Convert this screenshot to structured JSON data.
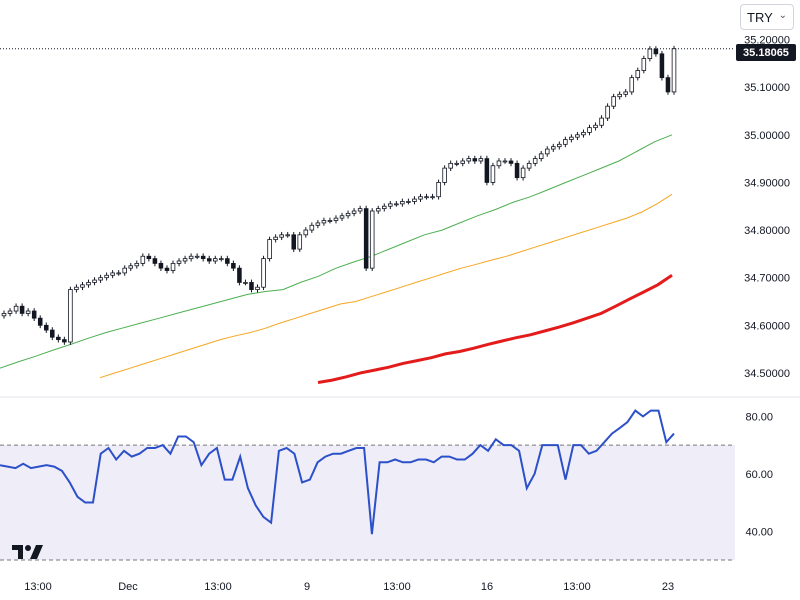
{
  "currency_select": {
    "value": "TRY"
  },
  "last_price": "35.18065",
  "colors": {
    "candle_up_body": "#ffffff",
    "candle_outline": "#131722",
    "candle_down_body": "#131722",
    "ma_fast": "#4caf50",
    "ma_mid": "#f5a623",
    "ma_slow": "#e31b1b",
    "rsi_line": "#2c50c8",
    "rsi_band": "#efedf8",
    "grid": "#e6e6e6"
  },
  "icons": {
    "logo": "tradingview-logo-icon",
    "dropdown": "chevron-down-icon"
  },
  "chart_data": [
    {
      "type": "candlestick",
      "panel": "price",
      "ylim": [
        34.46,
        35.22
      ],
      "y_ticks": [
        "35.20000",
        "35.10000",
        "35.00000",
        "34.90000",
        "34.80000",
        "34.70000",
        "34.60000",
        "34.50000"
      ],
      "x_tick_labels": [
        "13:00",
        "Dec",
        "13:00",
        "9",
        "13:00",
        "16",
        "13:00",
        "23"
      ],
      "close_series": [
        34.625,
        34.63,
        34.64,
        34.625,
        34.63,
        34.615,
        34.6,
        34.59,
        34.575,
        34.57,
        34.565,
        34.675,
        34.68,
        34.685,
        34.69,
        34.695,
        34.7,
        34.705,
        34.71,
        34.71,
        34.72,
        34.725,
        34.73,
        34.745,
        34.74,
        34.73,
        34.72,
        34.715,
        34.73,
        34.735,
        34.74,
        34.745,
        34.745,
        34.74,
        34.735,
        34.74,
        34.74,
        34.73,
        34.72,
        34.69,
        34.69,
        34.675,
        34.68,
        34.74,
        34.78,
        34.785,
        34.79,
        34.79,
        34.76,
        34.79,
        34.8,
        34.81,
        34.815,
        34.82,
        34.82,
        34.825,
        34.83,
        34.835,
        34.84,
        34.845,
        34.72,
        34.84,
        34.845,
        34.85,
        34.855,
        34.855,
        34.86,
        34.86,
        34.865,
        34.87,
        34.87,
        34.87,
        34.9,
        34.93,
        34.94,
        34.94,
        34.945,
        34.95,
        34.945,
        34.95,
        34.9,
        34.935,
        34.945,
        34.945,
        34.94,
        34.91,
        34.93,
        34.94,
        34.95,
        34.96,
        34.97,
        34.975,
        34.98,
        34.99,
        34.995,
        35.0,
        35.005,
        35.015,
        35.02,
        35.035,
        35.06,
        35.08,
        35.085,
        35.09,
        35.12,
        35.135,
        35.16,
        35.18,
        35.17,
        35.12,
        35.09,
        35.18065
      ]
    },
    {
      "type": "line",
      "panel": "price",
      "series": [
        {
          "values": [
            34.51,
            34.523,
            34.535,
            34.548,
            34.56,
            34.573,
            34.585,
            34.595,
            34.605,
            34.615,
            34.625,
            34.635,
            34.645,
            34.655,
            34.665,
            34.671,
            34.675,
            34.69,
            34.703,
            34.72,
            34.733,
            34.745,
            34.76,
            34.775,
            34.79,
            34.8,
            34.815,
            34.83,
            34.843,
            34.858,
            34.87,
            34.885,
            34.9,
            34.915,
            34.93,
            34.945,
            34.965,
            34.985,
            35.0
          ]
        },
        {
          "values": [
            34.49,
            34.5,
            34.51,
            34.52,
            34.53,
            34.54,
            34.55,
            34.56,
            34.57,
            34.578,
            34.585,
            34.594,
            34.605,
            34.615,
            34.625,
            34.635,
            34.645,
            34.65,
            34.66,
            34.67,
            34.68,
            34.69,
            34.7,
            34.71,
            34.72,
            34.728,
            34.737,
            34.745,
            34.755,
            34.765,
            34.775,
            34.785,
            34.795,
            34.805,
            34.815,
            34.825,
            34.838,
            34.855,
            34.875
          ]
        },
        {
          "values": [
            34.48,
            34.485,
            34.492,
            34.5,
            34.506,
            34.512,
            34.52,
            34.526,
            34.532,
            34.54,
            34.545,
            34.552,
            34.56,
            34.567,
            34.574,
            34.58,
            34.588,
            34.596,
            34.605,
            34.615,
            34.625,
            34.64,
            34.655,
            34.67,
            34.685,
            34.705
          ]
        }
      ]
    },
    {
      "type": "line",
      "panel": "rsi",
      "ylim": [
        30,
        85
      ],
      "y_ticks": [
        "80.00",
        "60.00",
        "40.00"
      ],
      "band": [
        30,
        70
      ],
      "series": [
        {
          "values": [
            63,
            62.5,
            62,
            63.5,
            62,
            62.5,
            63,
            62.5,
            61,
            57,
            52,
            50,
            50,
            67,
            69,
            65,
            68,
            66,
            67,
            69,
            69,
            70,
            67,
            73,
            73,
            71,
            63,
            67,
            69,
            58,
            58,
            66,
            55,
            49,
            45,
            43,
            68,
            69,
            67,
            57,
            58,
            64,
            66,
            67,
            67,
            68,
            69,
            69,
            39,
            64,
            64,
            65,
            64,
            64,
            65,
            65,
            64,
            66,
            66,
            65,
            65,
            67,
            70,
            68,
            72,
            70,
            70,
            68,
            55,
            60,
            70,
            70,
            70,
            58,
            70,
            70,
            67,
            68,
            71,
            74,
            76,
            78,
            82,
            80,
            82,
            82,
            71,
            74
          ]
        }
      ]
    }
  ]
}
